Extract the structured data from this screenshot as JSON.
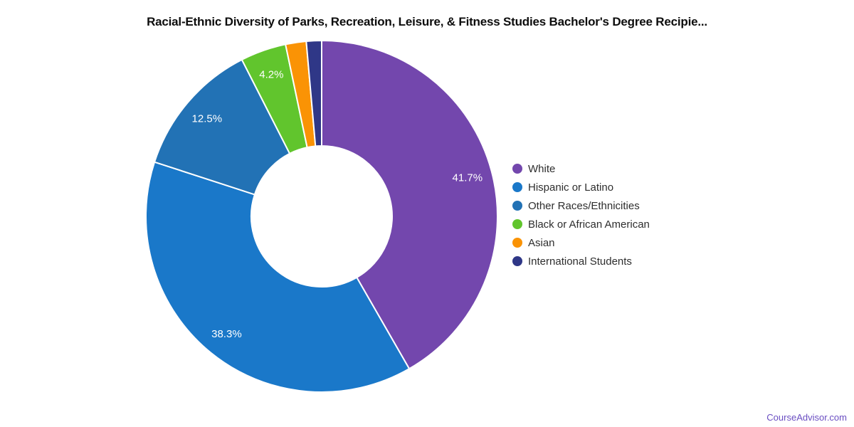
{
  "chart_data": {
    "type": "pie",
    "subtype": "donut",
    "title": "Racial-Ethnic Diversity of Parks, Recreation, Leisure, & Fitness Studies Bachelor's Degree Recipie...",
    "legend_position": "right",
    "slice_labels_shown": [
      "41.7%",
      "38.3%",
      "12.5%",
      "4.2%"
    ],
    "series": [
      {
        "label": "White",
        "value": 41.7,
        "display_label": "41.7%",
        "color": "#7347ad"
      },
      {
        "label": "Hispanic or Latino",
        "value": 38.3,
        "display_label": "38.3%",
        "color": "#1a78c9"
      },
      {
        "label": "Other Races/Ethnicities",
        "value": 12.5,
        "display_label": "12.5%",
        "color": "#2272b5"
      },
      {
        "label": "Black or African American",
        "value": 4.2,
        "display_label": "4.2%",
        "color": "#61c52d"
      },
      {
        "label": "Asian",
        "value": 1.9,
        "display_label": "",
        "color": "#fa9305"
      },
      {
        "label": "International Students",
        "value": 1.4,
        "display_label": "",
        "color": "#2f3787"
      }
    ]
  },
  "slice_label_style": {
    "color": "#ffffff",
    "font_size": 15
  },
  "footer": {
    "text": "CourseAdvisor.com",
    "color": "#6a4ec2"
  }
}
